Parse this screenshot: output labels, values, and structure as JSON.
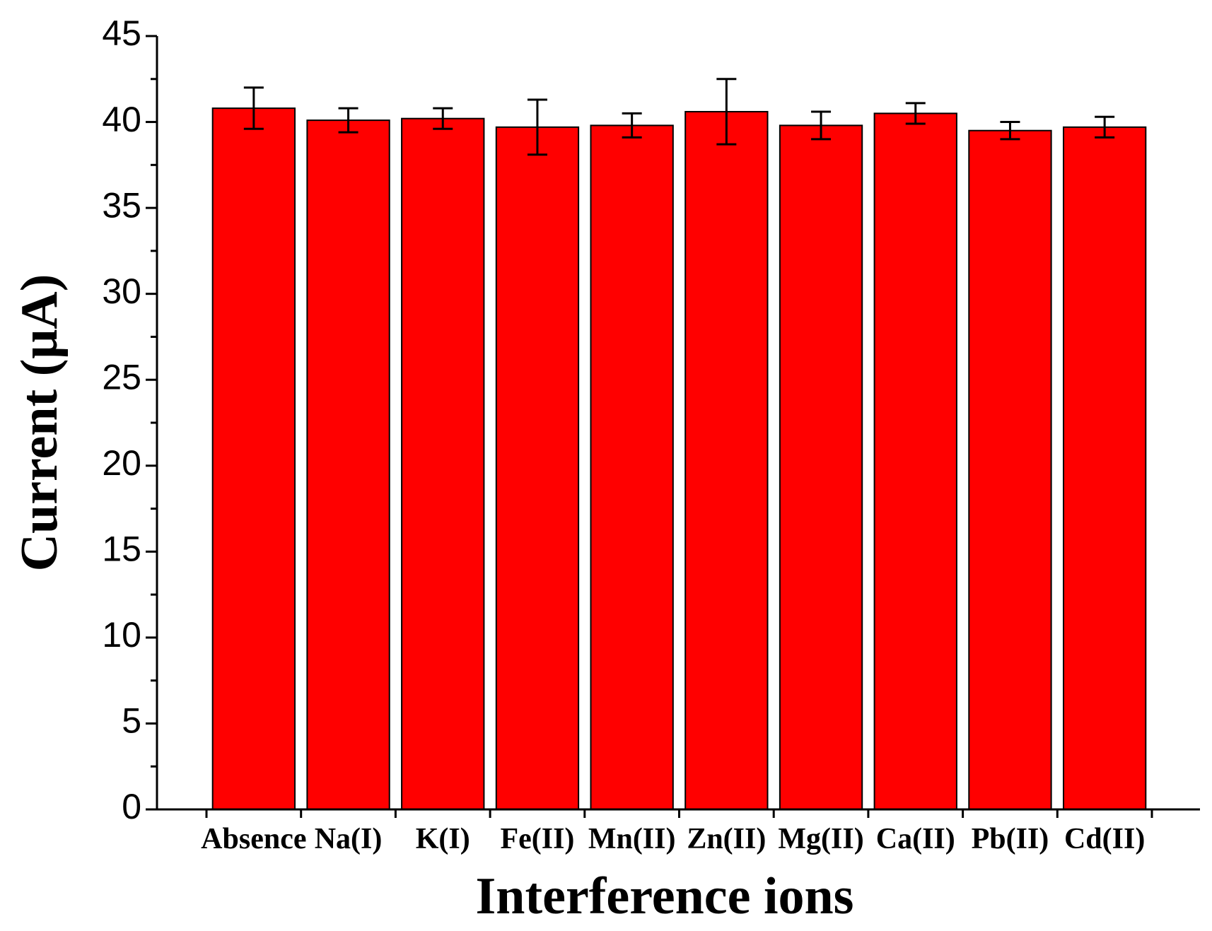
{
  "chart_data": {
    "type": "bar",
    "x_label": "Interference ions",
    "y_label": "Current (μA)",
    "categories": [
      "Absence",
      "Na(I)",
      "K(I)",
      "Fe(II)",
      "Mn(II)",
      "Zn(II)",
      "Mg(II)",
      "Ca(II)",
      "Pb(II)",
      "Cd(II)"
    ],
    "values": [
      40.8,
      40.1,
      40.2,
      39.7,
      39.8,
      40.6,
      39.8,
      40.5,
      39.5,
      39.7
    ],
    "errors": [
      1.2,
      0.7,
      0.6,
      1.6,
      0.7,
      1.9,
      0.8,
      0.6,
      0.5,
      0.6
    ],
    "color": "#ff0000",
    "ylim": [
      0,
      45
    ],
    "yticks": [
      0,
      5,
      10,
      15,
      20,
      25,
      30,
      35,
      40,
      45
    ]
  }
}
